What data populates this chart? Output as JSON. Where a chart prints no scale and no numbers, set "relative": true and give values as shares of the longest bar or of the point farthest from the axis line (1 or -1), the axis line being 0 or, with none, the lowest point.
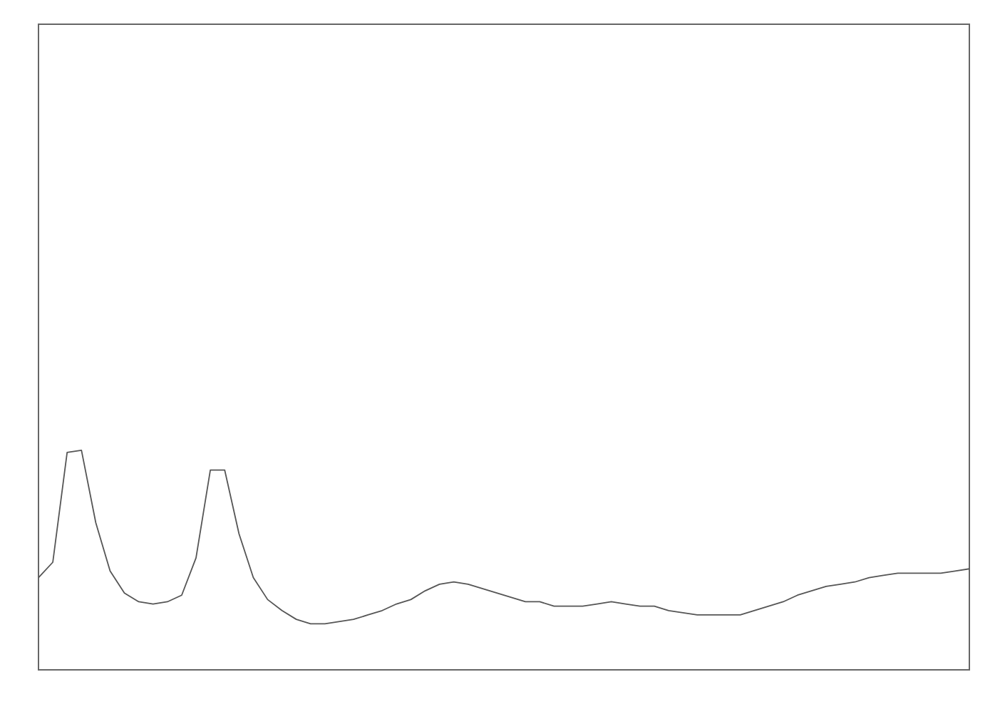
{
  "chart_data": {
    "type": "line",
    "relative": true,
    "categories": [
      null,
      null,
      null,
      null,
      null,
      null,
      null,
      null,
      null,
      null,
      null,
      null,
      null,
      null,
      null,
      null,
      null,
      null,
      null,
      null,
      null,
      null,
      null,
      null,
      null,
      null,
      null,
      null,
      null,
      null,
      null,
      null,
      null,
      null,
      null,
      null,
      null,
      null,
      null,
      null,
      null,
      null,
      null,
      null,
      null,
      null,
      null,
      null,
      null,
      null,
      null,
      null,
      null,
      null,
      null,
      null,
      null,
      null,
      null,
      null,
      null,
      null,
      null,
      null,
      null,
      null
    ],
    "series": [
      {
        "color": "#555555",
        "values": [
          0.42,
          0.49,
          0.99,
          1,
          0.67,
          0.45,
          0.35,
          0.31,
          0.3,
          0.31,
          0.34,
          0.51,
          0.91,
          0.91,
          0.62,
          0.42,
          0.32,
          0.27,
          0.23,
          0.21,
          0.21,
          0.22,
          0.23,
          0.25,
          0.27,
          0.3,
          0.32,
          0.36,
          0.39,
          0.4,
          0.39,
          0.37,
          0.35,
          0.33,
          0.31,
          0.31,
          0.29,
          0.29,
          0.29,
          0.3,
          0.31,
          0.3,
          0.29,
          0.29,
          0.27,
          0.26,
          0.25,
          0.25,
          0.25,
          0.25,
          0.27,
          0.29,
          0.31,
          0.34,
          0.36,
          0.38,
          0.39,
          0.4,
          0.42,
          0.43,
          0.44,
          0.44,
          0.44,
          0.44,
          0.45,
          0.46
        ]
      }
    ],
    "marker": "none",
    "line_style": "solid"
  }
}
